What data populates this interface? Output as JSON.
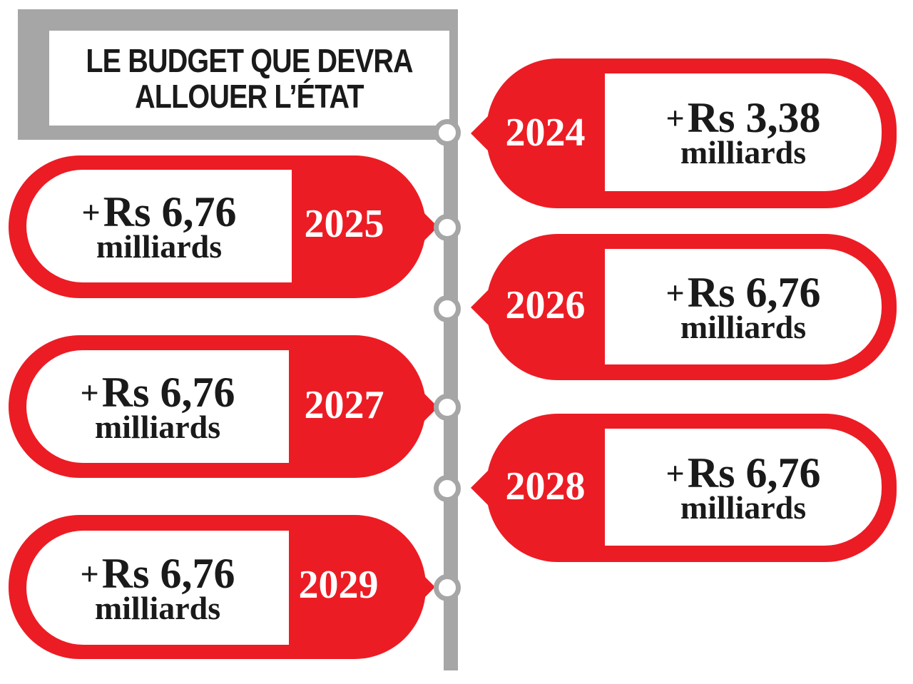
{
  "title": {
    "line1": "LE BUDGET QUE DEVRA",
    "line2": "ALLOUER L’ÉTAT"
  },
  "colors": {
    "accent": "#ec1c24",
    "line": "#a6a6a6",
    "text": "#1a1a1a"
  },
  "entries": [
    {
      "year": "2024",
      "plus": "+",
      "amount": "Rs 3,38",
      "unit": "milliards"
    },
    {
      "year": "2025",
      "plus": "+",
      "amount": "Rs 6,76",
      "unit": "milliards"
    },
    {
      "year": "2026",
      "plus": "+",
      "amount": "Rs 6,76",
      "unit": "milliards"
    },
    {
      "year": "2027",
      "plus": "+",
      "amount": "Rs 6,76",
      "unit": "milliards"
    },
    {
      "year": "2028",
      "plus": "+",
      "amount": "Rs 6,76",
      "unit": "milliards"
    },
    {
      "year": "2029",
      "plus": "+",
      "amount": "Rs 6,76",
      "unit": "milliards"
    }
  ]
}
